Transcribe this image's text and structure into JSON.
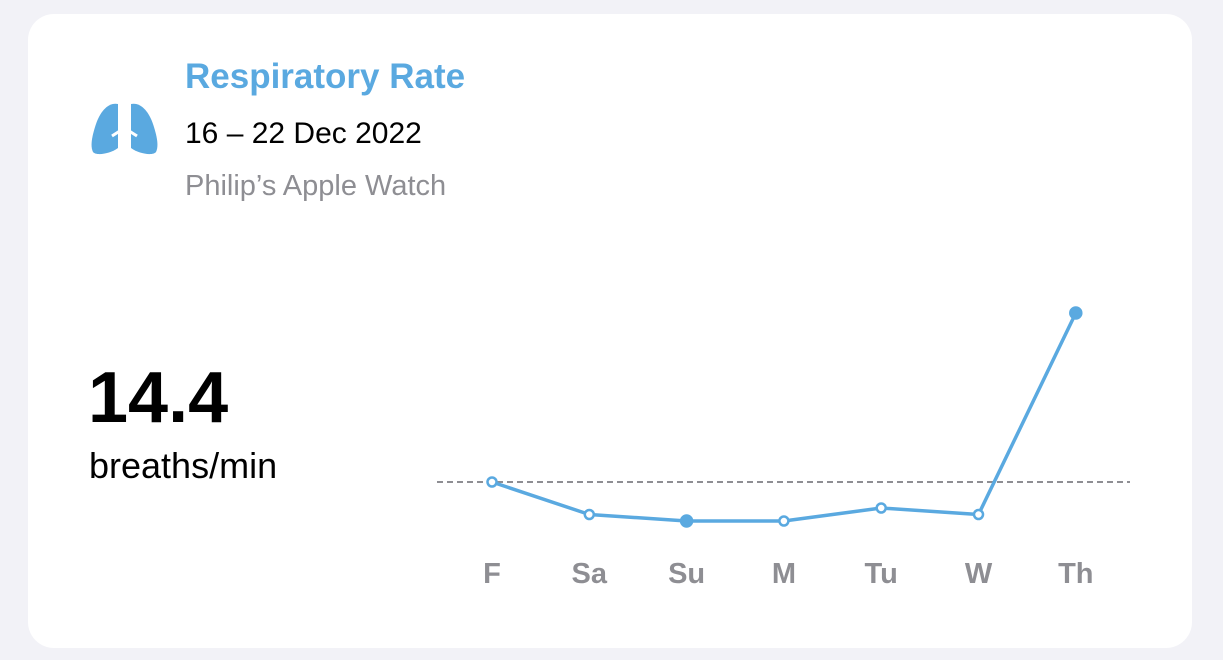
{
  "header": {
    "title": "Respiratory Rate",
    "date_range": "16 – 22 Dec 2022",
    "device": "Philip’s Apple Watch"
  },
  "summary": {
    "value": 14.4,
    "unit": "breaths/min"
  },
  "chart_data": {
    "type": "line",
    "categories": [
      "F",
      "Sa",
      "Su",
      "M",
      "Tu",
      "W",
      "Th"
    ],
    "values": [
      14.4,
      13.9,
      13.8,
      13.8,
      14.0,
      13.9,
      17.0
    ],
    "filled_points": [
      false,
      false,
      true,
      false,
      false,
      false,
      true
    ],
    "color": "#5aa9e0",
    "ylim": [
      13.5,
      17.4
    ]
  }
}
